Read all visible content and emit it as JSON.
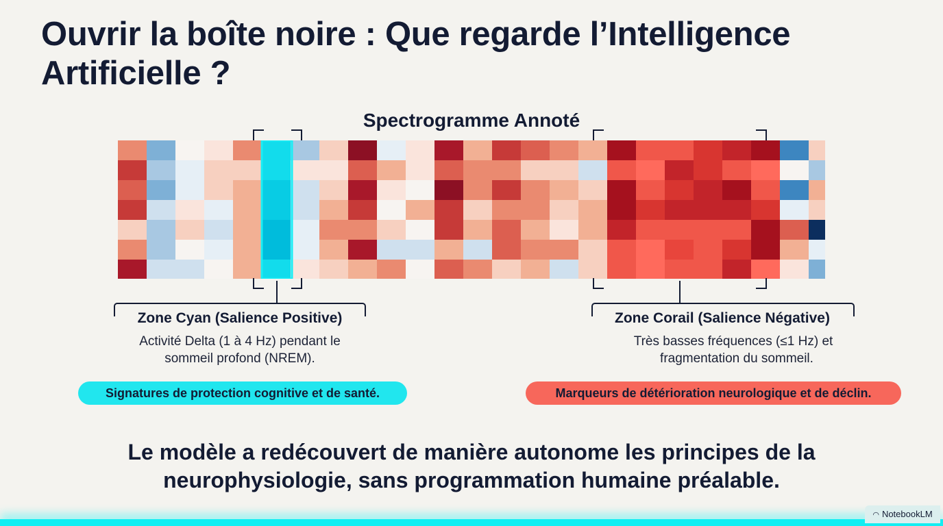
{
  "title": "Ouvrir la boîte noire : Que regarde l’Intelligence Artificielle ?",
  "spectrogram": {
    "title": "Spectrogramme Annoté",
    "colors": {
      "1": "#f7f4f1",
      "2": "#fae4dc",
      "3": "#f7d0c0",
      "4": "#f2b094",
      "5": "#ea8a70",
      "6": "#dc5f50",
      "7": "#c63a38",
      "8": "#a8182a",
      "9": "#8c1024",
      "-1": "#e6eff6",
      "-2": "#cfe0ee",
      "-3": "#a8c8e2",
      "-4": "#7eb0d6",
      "-5": "#3d86c0",
      "-6": "#0c2e5e",
      "c1": "#12dcec",
      "c2": "#08cce4",
      "c3": "#00bcdc",
      "r1": "#e8453c",
      "r2": "#f0574a",
      "r3": "#d83530",
      "r4": "#c2242a",
      "r5": "#ff6a5c",
      "r6": "#a5111e",
      "r7": "#ff5d55"
    },
    "grid": [
      [
        "5",
        "-4",
        "1",
        "2",
        "5",
        "c1",
        "-3",
        "3",
        "9",
        "-1",
        "2",
        "8",
        "4",
        "7",
        "6",
        "5",
        "4",
        "r6",
        "r2",
        "r2",
        "r3",
        "r4",
        "r6",
        "-5",
        "3"
      ],
      [
        "7",
        "-3",
        "-1",
        "3",
        "3",
        "c1",
        "2",
        "2",
        "6",
        "4",
        "2",
        "6",
        "5",
        "5",
        "3",
        "3",
        "-2",
        "r2",
        "r5",
        "r4",
        "r3",
        "r2",
        "r5",
        "1",
        "-3"
      ],
      [
        "6",
        "-4",
        "-1",
        "3",
        "4",
        "c2",
        "-2",
        "3",
        "8",
        "2",
        "1",
        "9",
        "5",
        "7",
        "5",
        "4",
        "3",
        "r6",
        "r2",
        "r3",
        "r4",
        "r6",
        "r2",
        "-5",
        "4"
      ],
      [
        "7",
        "-2",
        "2",
        "-1",
        "4",
        "c2",
        "-2",
        "4",
        "7",
        "1",
        "4",
        "7",
        "3",
        "5",
        "5",
        "3",
        "4",
        "r6",
        "r3",
        "r4",
        "r4",
        "r4",
        "r3",
        "-1",
        "3"
      ],
      [
        "3",
        "-3",
        "3",
        "-2",
        "4",
        "c3",
        "-1",
        "5",
        "5",
        "3",
        "1",
        "7",
        "4",
        "6",
        "4",
        "2",
        "4",
        "r4",
        "r2",
        "r2",
        "r2",
        "r2",
        "r6",
        "6",
        "-6"
      ],
      [
        "5",
        "-3",
        "1",
        "-1",
        "4",
        "c3",
        "-1",
        "4",
        "8",
        "-2",
        "-2",
        "4",
        "-2",
        "6",
        "5",
        "5",
        "3",
        "r2",
        "r5",
        "r1",
        "r2",
        "r3",
        "r6",
        "4",
        "-1"
      ],
      [
        "8",
        "-2",
        "-2",
        "1",
        "4",
        "c1",
        "2",
        "3",
        "4",
        "5",
        "1",
        "6",
        "5",
        "3",
        "4",
        "-2",
        "3",
        "r2",
        "r5",
        "r2",
        "r2",
        "r4",
        "r5",
        "2",
        "-4"
      ]
    ]
  },
  "zones": {
    "cyan": {
      "title": "Zone Cyan (Salience Positive)",
      "desc1": "Activité Delta (1 à 4 Hz) pendant le",
      "desc2": "sommeil profond (NREM).",
      "pill": "Signatures de protection cognitive et de santé."
    },
    "coral": {
      "title": "Zone Corail (Salience Négative)",
      "desc1": "Très basses fréquences (≤1 Hz) et",
      "desc2": "fragmentation du sommeil.",
      "pill": "Marqueurs de détérioration neurologique et de déclin."
    }
  },
  "conclusion": {
    "line1": "Le modèle a redécouvert de manière autonome les principes de la",
    "line2": "neurophysiologie, sans programmation humaine préalable."
  },
  "badge": {
    "icon": "notebooklm-logo-icon",
    "label": "NotebookLM"
  }
}
